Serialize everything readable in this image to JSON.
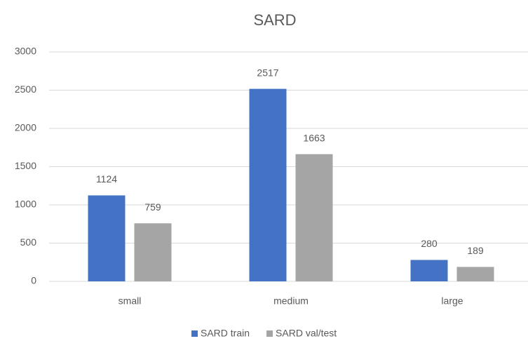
{
  "chart_data": {
    "type": "bar",
    "title": "SARD",
    "categories": [
      "small",
      "medium",
      "large"
    ],
    "series": [
      {
        "name": "SARD train",
        "color": "#4472c4",
        "values": [
          1124,
          2517,
          280
        ]
      },
      {
        "name": "SARD val/test",
        "color": "#a5a5a5",
        "values": [
          759,
          1663,
          189
        ]
      }
    ],
    "ylim": [
      0,
      3000
    ],
    "yticks": [
      0,
      500,
      1000,
      1500,
      2000,
      2500,
      3000
    ],
    "grid": true,
    "legend": "bottom"
  }
}
